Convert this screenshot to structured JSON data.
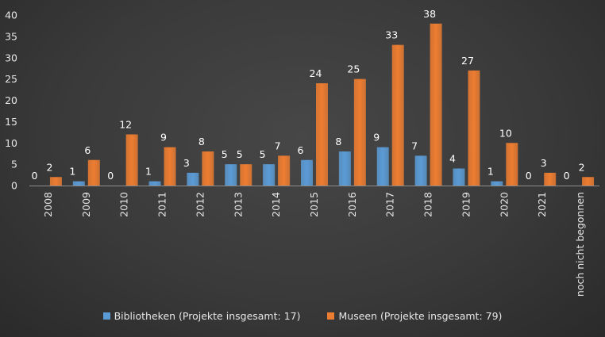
{
  "chart_data": {
    "type": "bar",
    "categories": [
      "2008",
      "2009",
      "2010",
      "2011",
      "2012",
      "2013",
      "2014",
      "2015",
      "2016",
      "2017",
      "2018",
      "2019",
      "2020",
      "2021",
      "noch nicht begonnen"
    ],
    "series": [
      {
        "name": "Bibliotheken (Projekte insgesamt: 17)",
        "color": "#5b9bd5",
        "values": [
          0,
          1,
          0,
          1,
          3,
          5,
          5,
          6,
          8,
          9,
          7,
          4,
          1,
          0,
          0
        ]
      },
      {
        "name": "Museen (Projekte insgesamt: 79)",
        "color": "#ed7d31",
        "values": [
          2,
          6,
          12,
          9,
          8,
          5,
          7,
          24,
          25,
          33,
          38,
          27,
          10,
          3,
          2
        ]
      }
    ],
    "yticks": [
      0,
      5,
      10,
      15,
      20,
      25,
      30,
      35,
      40
    ],
    "ylim": [
      0,
      40
    ],
    "grid": false,
    "legend_position": "bottom"
  }
}
